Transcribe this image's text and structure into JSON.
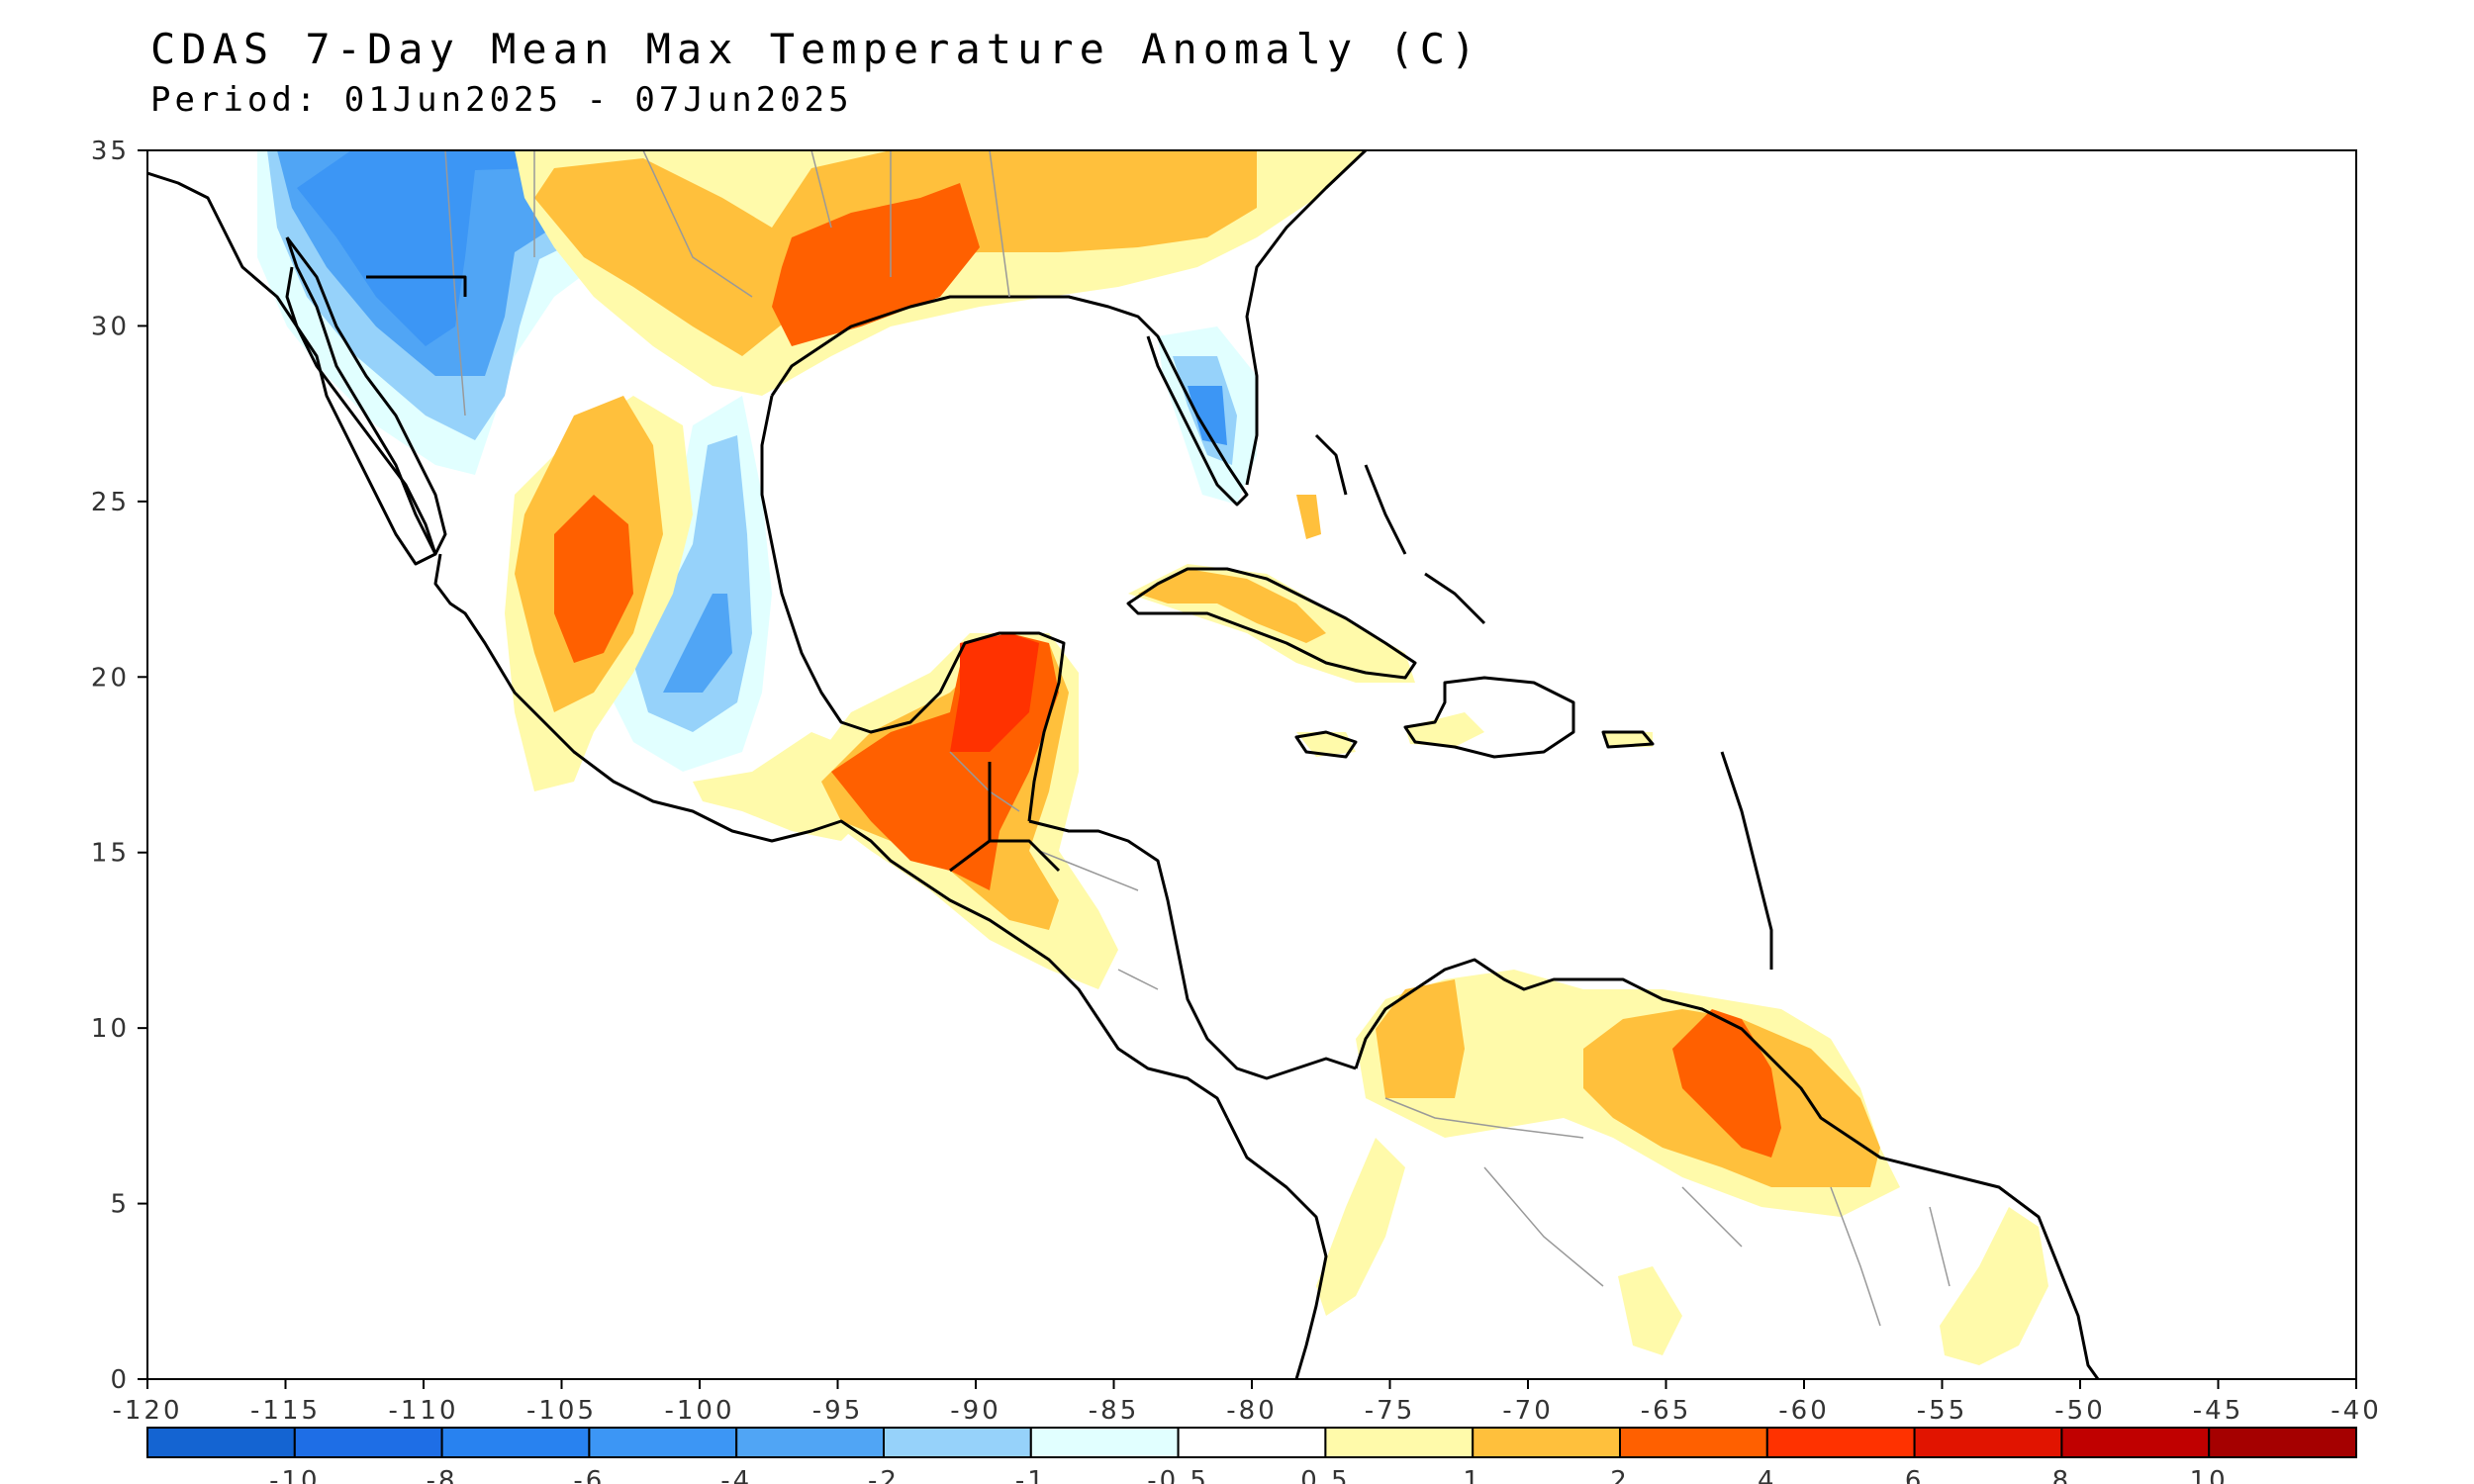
{
  "title": "CDAS 7-Day Mean Max Temperature Anomaly (C)",
  "subtitle": "Period: 01Jun2025 - 07Jun2025",
  "map": {
    "lon_range": [
      -120,
      -40
    ],
    "lat_range": [
      0,
      35
    ],
    "lon_ticks": [
      "-120",
      "-115",
      "-110",
      "-105",
      "-100",
      "-95",
      "-90",
      "-85",
      "-80",
      "-75",
      "-70",
      "-65",
      "-60",
      "-55",
      "-50",
      "-45",
      "-40"
    ],
    "lat_ticks": [
      "0",
      "5",
      "10",
      "15",
      "20",
      "25",
      "30",
      "35"
    ]
  },
  "colorbar": {
    "colors": [
      "#1464d2",
      "#1e6ee6",
      "#2882f0",
      "#3c96f5",
      "#50a5f5",
      "#96d2fa",
      "#e1ffff",
      "#ffffff",
      "#fffaaa",
      "#ffc03c",
      "#ff6000",
      "#ff3200",
      "#e11400",
      "#c00000",
      "#a50000"
    ],
    "labels": [
      "-10",
      "-8",
      "-6",
      "-4",
      "-2",
      "-1",
      "-0.5",
      "0.5",
      "1",
      "2",
      "4",
      "6",
      "8",
      "10"
    ]
  }
}
